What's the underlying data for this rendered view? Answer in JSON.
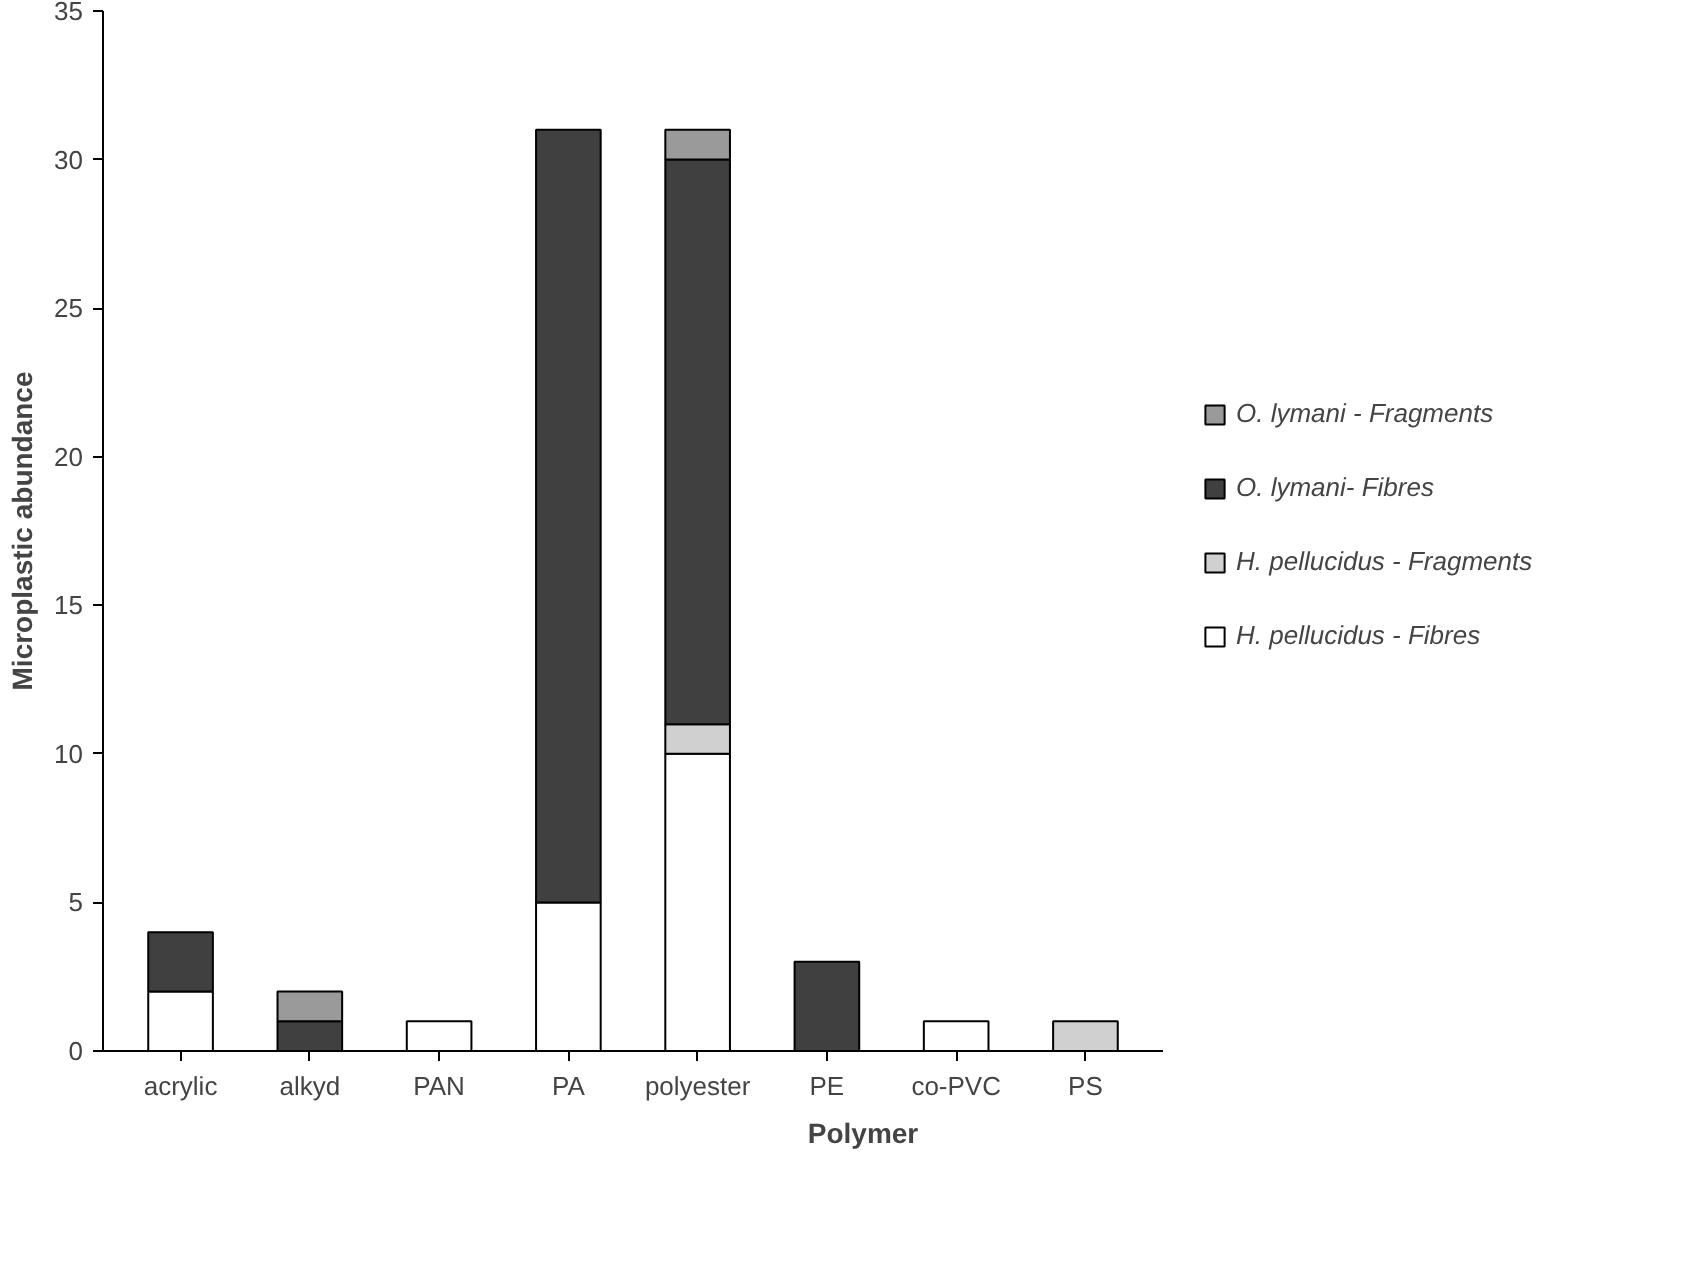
{
  "chart_data": {
    "type": "bar",
    "stacked": true,
    "xlabel": "Polymer",
    "ylabel": "Microplastic abundance",
    "categories": [
      "acrylic",
      "alkyd",
      "PAN",
      "PA",
      "polyester",
      "PE",
      "co-PVC",
      "PS"
    ],
    "series": [
      {
        "name": "H. pellucidus - Fibres",
        "color": "#ffffff",
        "values": [
          2,
          0,
          1,
          5,
          10,
          0,
          1,
          0
        ]
      },
      {
        "name": "H. pellucidus - Fragments",
        "color": "#d0d0d0",
        "values": [
          0,
          0,
          0,
          0,
          1,
          0,
          0,
          1
        ]
      },
      {
        "name": "O. lymani- Fibres",
        "color": "#404040",
        "values": [
          2,
          1,
          0,
          26,
          19,
          3,
          0,
          0
        ]
      },
      {
        "name": "O. lymani - Fragments",
        "color": "#9a9a9a",
        "values": [
          0,
          1,
          0,
          0,
          1,
          0,
          0,
          0
        ]
      }
    ],
    "ylim": [
      0,
      35
    ],
    "yticks": [
      0,
      5,
      10,
      15,
      20,
      25,
      30,
      35
    ],
    "grid": false,
    "legend": "right"
  }
}
